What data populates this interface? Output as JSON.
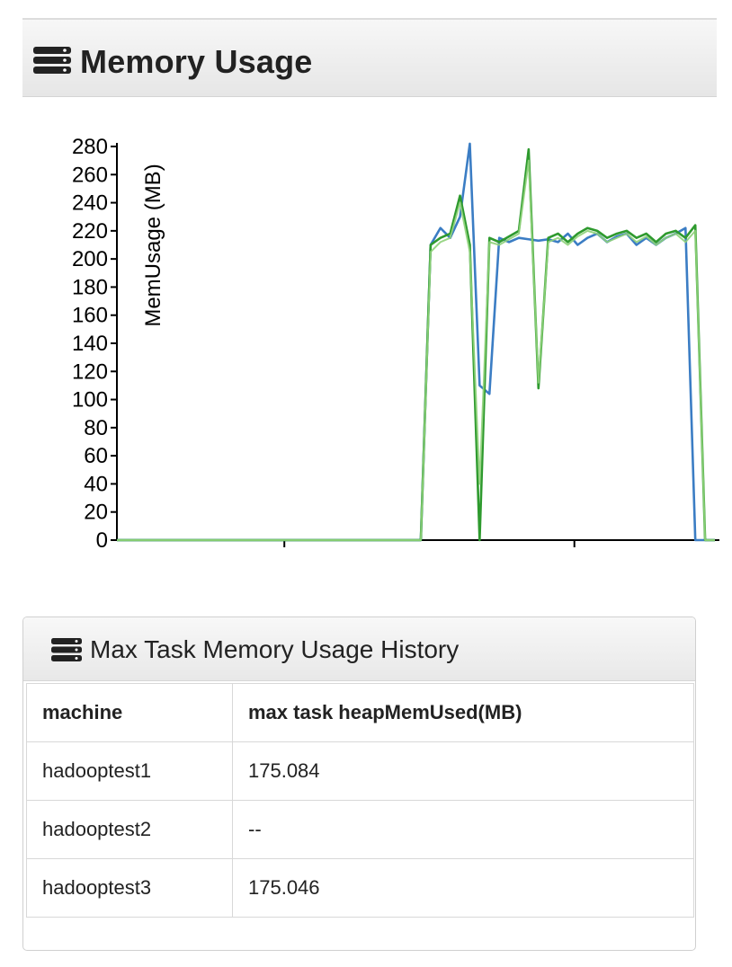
{
  "panel": {
    "title": "Memory Usage",
    "icon": "list-icon"
  },
  "chart_data": {
    "type": "line",
    "ylabel": "MemUsage (MB)",
    "ylim": [
      0,
      280
    ],
    "yticks": [
      0,
      20,
      40,
      60,
      80,
      100,
      120,
      140,
      160,
      180,
      200,
      220,
      240,
      260,
      280
    ],
    "grid": false,
    "x": [
      0,
      1,
      2,
      3,
      4,
      5,
      6,
      7,
      8,
      9,
      10,
      11,
      12,
      13,
      14,
      15,
      16,
      17,
      18,
      19,
      20,
      21,
      22,
      23,
      24,
      25,
      26,
      27,
      28,
      29,
      30,
      31,
      32,
      33,
      34,
      35,
      36,
      37,
      38,
      39,
      40,
      41,
      42,
      43,
      44,
      45,
      46,
      47,
      48,
      49,
      50,
      51,
      52,
      53,
      54,
      55,
      56,
      57,
      58,
      59,
      60,
      61
    ],
    "series": [
      {
        "color": "#3b7dc4",
        "values": [
          0,
          0,
          0,
          0,
          0,
          0,
          0,
          0,
          0,
          0,
          0,
          0,
          0,
          0,
          0,
          0,
          0,
          0,
          0,
          0,
          0,
          0,
          0,
          0,
          0,
          0,
          0,
          0,
          0,
          0,
          0,
          0,
          210,
          222,
          215,
          230,
          282,
          110,
          104,
          215,
          212,
          215,
          214,
          213,
          214,
          212,
          218,
          210,
          215,
          218,
          212,
          216,
          218,
          210,
          215,
          210,
          215,
          218,
          222,
          0,
          0,
          0
        ]
      },
      {
        "color": "#2e9a2e",
        "values": [
          0,
          0,
          0,
          0,
          0,
          0,
          0,
          0,
          0,
          0,
          0,
          0,
          0,
          0,
          0,
          0,
          0,
          0,
          0,
          0,
          0,
          0,
          0,
          0,
          0,
          0,
          0,
          0,
          0,
          0,
          0,
          0,
          210,
          215,
          218,
          245,
          210,
          0,
          215,
          212,
          216,
          220,
          278,
          108,
          215,
          218,
          212,
          218,
          222,
          220,
          215,
          218,
          220,
          215,
          218,
          212,
          218,
          220,
          215,
          224,
          0,
          0
        ]
      },
      {
        "color": "#8fd17a",
        "values": [
          0,
          0,
          0,
          0,
          0,
          0,
          0,
          0,
          0,
          0,
          0,
          0,
          0,
          0,
          0,
          0,
          0,
          0,
          0,
          0,
          0,
          0,
          0,
          0,
          0,
          0,
          0,
          0,
          0,
          0,
          0,
          0,
          205,
          212,
          215,
          240,
          205,
          40,
          212,
          210,
          214,
          218,
          270,
          112,
          212,
          215,
          210,
          216,
          220,
          218,
          212,
          215,
          218,
          212,
          216,
          210,
          215,
          218,
          212,
          220,
          0,
          0
        ]
      }
    ]
  },
  "history": {
    "title": "Max Task Memory Usage History",
    "icon": "list-icon",
    "columns": [
      "machine",
      "max task heapMemUsed(MB)"
    ],
    "rows": [
      [
        "hadooptest1",
        "175.084"
      ],
      [
        "hadooptest2",
        "--"
      ],
      [
        "hadooptest3",
        "175.046"
      ]
    ]
  }
}
